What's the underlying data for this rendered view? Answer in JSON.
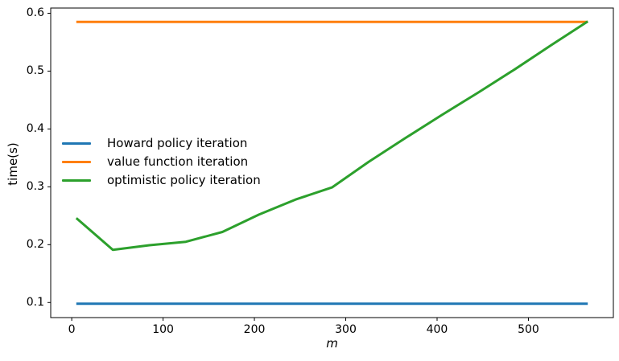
{
  "chart_data": {
    "type": "line",
    "title": "",
    "xlabel": "m",
    "ylabel": "time(s)",
    "x": [
      5,
      45,
      85,
      125,
      165,
      205,
      245,
      285,
      325,
      365,
      405,
      445,
      485,
      525,
      565
    ],
    "series": [
      {
        "name": "Howard policy iteration",
        "color": "#1f77b4",
        "values": [
          0.098,
          0.098,
          0.098,
          0.098,
          0.098,
          0.098,
          0.098,
          0.098,
          0.098,
          0.098,
          0.098,
          0.098,
          0.098,
          0.098,
          0.098
        ]
      },
      {
        "name": "value function iteration",
        "color": "#ff7f0e",
        "values": [
          0.585,
          0.585,
          0.585,
          0.585,
          0.585,
          0.585,
          0.585,
          0.585,
          0.585,
          0.585,
          0.585,
          0.585,
          0.585,
          0.585,
          0.585
        ]
      },
      {
        "name": "optimistic policy iteration",
        "color": "#2ca02c",
        "values": [
          0.246,
          0.191,
          0.199,
          0.205,
          0.222,
          0.252,
          0.278,
          0.299,
          0.343,
          0.384,
          0.424,
          0.463,
          0.503,
          0.545,
          0.586
        ]
      }
    ],
    "x_ticks": [
      0,
      100,
      200,
      300,
      400,
      500
    ],
    "y_ticks": [
      0.1,
      0.2,
      0.3,
      0.4,
      0.5,
      0.6
    ],
    "xlim": [
      -23,
      593
    ],
    "ylim": [
      0.074,
      0.609
    ],
    "grid": false,
    "legend_position": "center-left",
    "legend_frame": false,
    "axis_color": "#000000",
    "background": "#ffffff",
    "line_width": 3
  }
}
